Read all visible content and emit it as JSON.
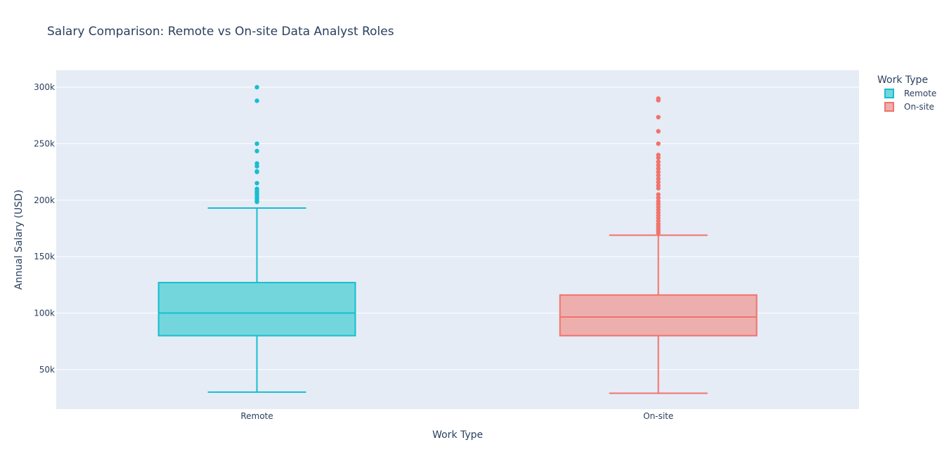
{
  "chart_data": {
    "type": "box",
    "title": "Salary Comparison: Remote vs On-site Data Analyst Roles",
    "xlabel": "Work Type",
    "ylabel": "Annual Salary (USD)",
    "ylim": [
      15000,
      315000
    ],
    "yticks": [
      50000,
      100000,
      150000,
      200000,
      250000,
      300000
    ],
    "ytick_labels": [
      "50k",
      "100k",
      "150k",
      "200k",
      "250k",
      "300k"
    ],
    "categories": [
      "Remote",
      "On-site"
    ],
    "grid": true,
    "legend": {
      "title": "Work Type",
      "placement": "top-right"
    },
    "series": [
      {
        "name": "Remote",
        "color": "#17becf",
        "fill": "#74d6dd",
        "lowerfence": 30000,
        "q1": 80000,
        "median": 100000,
        "q3": 127000,
        "upperfence": 193000,
        "outliers": [
          300000,
          288000,
          250000,
          243500,
          232500,
          230000,
          225500,
          225000,
          215000,
          210000,
          208000,
          206500,
          205000,
          203000,
          201500,
          200000,
          198500
        ]
      },
      {
        "name": "On-site",
        "color": "#f0736c",
        "fill": "#edafae",
        "lowerfence": 29000,
        "q1": 80000,
        "median": 96500,
        "q3": 116000,
        "upperfence": 169000,
        "outliers": [
          290000,
          288500,
          273500,
          261000,
          250000,
          240000,
          237500,
          234000,
          231000,
          228000,
          225000,
          222000,
          219000,
          216000,
          213000,
          210500,
          205000,
          202000,
          199000,
          196500,
          194000,
          191500,
          189000,
          186500,
          184000,
          181500,
          179000,
          177000,
          175000,
          173000,
          171000
        ]
      }
    ]
  }
}
